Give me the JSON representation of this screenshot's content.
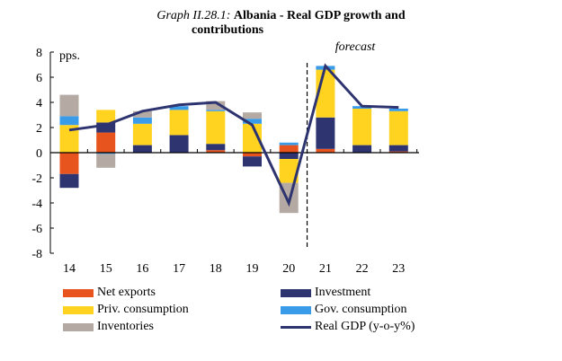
{
  "chart_data": {
    "type": "bar",
    "title_prefix": "Graph II.28.1:",
    "title": "Albania - Real GDP growth and contributions",
    "title_line1": "Albania - Real GDP growth and",
    "title_line2": "contributions",
    "ylabel": "pps.",
    "annotation": "forecast",
    "forecast_start_after": "20",
    "ylim": [
      -8,
      8
    ],
    "yticks": [
      "8",
      "6",
      "4",
      "2",
      "0",
      "-2",
      "-4",
      "-6",
      "-8"
    ],
    "ytick_values": [
      8,
      6,
      4,
      2,
      0,
      -2,
      -4,
      -6,
      -8
    ],
    "categories": [
      "14",
      "15",
      "16",
      "17",
      "18",
      "19",
      "20",
      "21",
      "22",
      "23"
    ],
    "series": [
      {
        "name": "Net exports",
        "color": "#E8541E",
        "values": [
          -1.7,
          1.6,
          0.0,
          0.0,
          0.2,
          -0.3,
          0.6,
          0.3,
          0.0,
          0.1
        ]
      },
      {
        "name": "Investment",
        "color": "#2E3470",
        "values": [
          -1.1,
          0.8,
          0.6,
          1.4,
          0.5,
          -0.8,
          -0.5,
          2.5,
          0.6,
          0.5
        ]
      },
      {
        "name": "Priv. consumption",
        "color": "#FFD320",
        "values": [
          2.2,
          1.0,
          1.7,
          2.0,
          2.6,
          2.3,
          -1.9,
          3.8,
          2.9,
          2.7
        ]
      },
      {
        "name": "Gov. consumption",
        "color": "#3A9BE8",
        "values": [
          0.7,
          -0.1,
          0.5,
          0.3,
          0.1,
          0.4,
          0.2,
          0.3,
          0.2,
          0.2
        ]
      },
      {
        "name": "Inventories",
        "color": "#B5AAA3",
        "values": [
          1.7,
          -1.1,
          0.5,
          0.0,
          0.7,
          0.5,
          -2.4,
          0.0,
          0.0,
          0.0
        ]
      }
    ],
    "line": {
      "name": "Real GDP (y-o-y%)",
      "color": "#2E3470",
      "values": [
        1.8,
        2.2,
        3.3,
        3.8,
        4.0,
        2.2,
        -4.0,
        6.9,
        3.7,
        3.6
      ]
    },
    "legend": [
      {
        "label": "Net exports",
        "color": "#E8541E",
        "kind": "bar"
      },
      {
        "label": "Investment",
        "color": "#2E3470",
        "kind": "bar"
      },
      {
        "label": "Priv. consumption",
        "color": "#FFD320",
        "kind": "bar"
      },
      {
        "label": "Gov. consumption",
        "color": "#3A9BE8",
        "kind": "bar"
      },
      {
        "label": "Inventories",
        "color": "#B5AAA3",
        "kind": "bar"
      },
      {
        "label": "Real GDP (y-o-y%)",
        "color": "#2E3470",
        "kind": "line"
      }
    ],
    "legend_placement": "bottom"
  }
}
